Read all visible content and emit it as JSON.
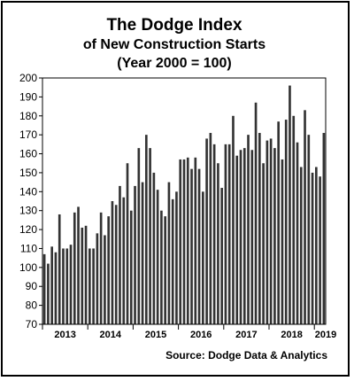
{
  "chart_data": {
    "type": "bar",
    "title": "The Dodge Index",
    "subtitle_1": "of New Construction Starts",
    "subtitle_2": "(Year 2000 = 100)",
    "source": "Source:  Dodge Data & Analytics",
    "ylim": [
      70,
      200
    ],
    "y_ticks": [
      70,
      80,
      90,
      100,
      110,
      120,
      130,
      140,
      150,
      160,
      170,
      180,
      190,
      200
    ],
    "grid": false,
    "x_tick_labels": [
      "2013",
      "2014",
      "2015",
      "2016",
      "2017",
      "2018",
      "2019"
    ],
    "x_label_month_index": [
      6,
      18,
      30,
      42,
      54,
      66,
      75
    ],
    "values": [
      107,
      102,
      111,
      108,
      128,
      110,
      110,
      112,
      129,
      132,
      121,
      122,
      110,
      110,
      118,
      129,
      117,
      127,
      135,
      133,
      143,
      137,
      155,
      130,
      143,
      163,
      145,
      170,
      163,
      150,
      141,
      130,
      127,
      145,
      136,
      140,
      157,
      157,
      158,
      152,
      158,
      152,
      140,
      168,
      171,
      165,
      155,
      142,
      165,
      165,
      180,
      159,
      162,
      163,
      170,
      162,
      187,
      171,
      155,
      167,
      168,
      163,
      177,
      157,
      178,
      196,
      180,
      166,
      153,
      183,
      170,
      150,
      153,
      148,
      171
    ],
    "bar_color": "#333333"
  }
}
